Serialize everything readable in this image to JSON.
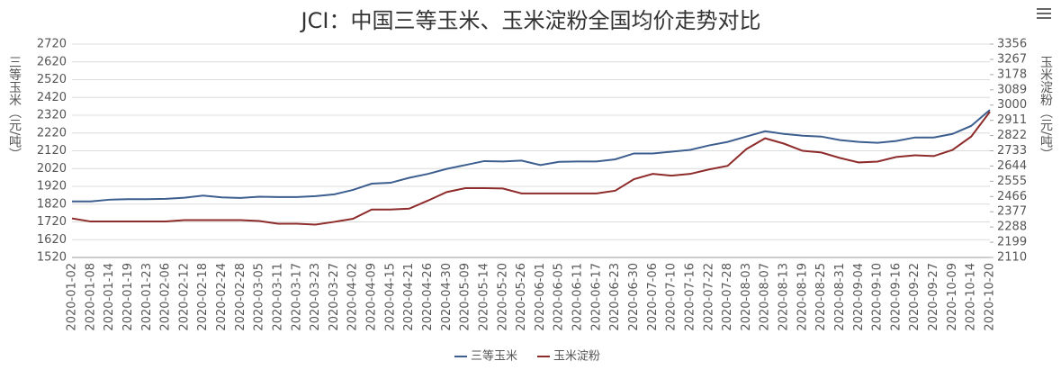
{
  "chart_data": {
    "type": "line",
    "title": "JCI：中国三等玉米、玉米淀粉全国均价走势对比",
    "y_label": "三等玉米（元/吨）",
    "y2_label": "玉米淀粉（元/吨）",
    "categories": [
      "2020-01-02",
      "2020-01-08",
      "2020-01-14",
      "2020-01-19",
      "2020-01-23",
      "2020-02-06",
      "2020-02-12",
      "2020-02-18",
      "2020-02-24",
      "2020-02-28",
      "2020-03-05",
      "2020-03-11",
      "2020-03-17",
      "2020-03-23",
      "2020-03-27",
      "2020-04-02",
      "2020-04-09",
      "2020-04-15",
      "2020-04-21",
      "2020-04-26",
      "2020-04-30",
      "2020-05-09",
      "2020-05-14",
      "2020-05-20",
      "2020-05-26",
      "2020-06-01",
      "2020-06-05",
      "2020-06-11",
      "2020-06-17",
      "2020-06-23",
      "2020-06-30",
      "2020-07-06",
      "2020-07-10",
      "2020-07-16",
      "2020-07-22",
      "2020-07-28",
      "2020-08-03",
      "2020-08-07",
      "2020-08-13",
      "2020-08-19",
      "2020-08-25",
      "2020-08-31",
      "2020-09-04",
      "2020-09-10",
      "2020-09-16",
      "2020-09-22",
      "2020-09-27",
      "2020-10-09",
      "2020-10-14",
      "2020-10-20"
    ],
    "series": [
      {
        "name": "三等玉米",
        "color": "#3d5f8f",
        "values": [
          1835,
          1835,
          1845,
          1848,
          1848,
          1850,
          1856,
          1868,
          1858,
          1855,
          1862,
          1860,
          1860,
          1865,
          1875,
          1900,
          1935,
          1940,
          1968,
          1990,
          2018,
          2040,
          2062,
          2060,
          2065,
          2040,
          2058,
          2060,
          2060,
          2072,
          2105,
          2105,
          2115,
          2125,
          2150,
          2170,
          2200,
          2230,
          2215,
          2205,
          2200,
          2180,
          2170,
          2165,
          2175,
          2195,
          2195,
          2215,
          2260,
          2350
        ]
      },
      {
        "name": "玉米淀粉",
        "color": "#8e2b2b",
        "axis": "y2",
        "values": [
          2338,
          2320,
          2320,
          2320,
          2320,
          2320,
          2328,
          2328,
          2328,
          2328,
          2323,
          2307,
          2307,
          2302,
          2318,
          2336,
          2390,
          2390,
          2395,
          2442,
          2492,
          2515,
          2515,
          2513,
          2484,
          2484,
          2484,
          2484,
          2484,
          2500,
          2567,
          2598,
          2588,
          2598,
          2624,
          2645,
          2743,
          2806,
          2775,
          2733,
          2723,
          2691,
          2665,
          2670,
          2697,
          2707,
          2702,
          2738,
          2816,
          2961
        ]
      }
    ],
    "ylim": [
      1520,
      2720
    ],
    "yticks": [
      1520,
      1620,
      1720,
      1820,
      1920,
      2020,
      2120,
      2220,
      2320,
      2420,
      2520,
      2620,
      2720
    ],
    "y2lim": [
      2110,
      3356
    ],
    "y2ticks": [
      2110,
      2199,
      2288,
      2377,
      2466,
      2555,
      2644,
      2733,
      2822,
      2911,
      3000,
      3089,
      3178,
      3267,
      3356
    ],
    "grid": true
  }
}
